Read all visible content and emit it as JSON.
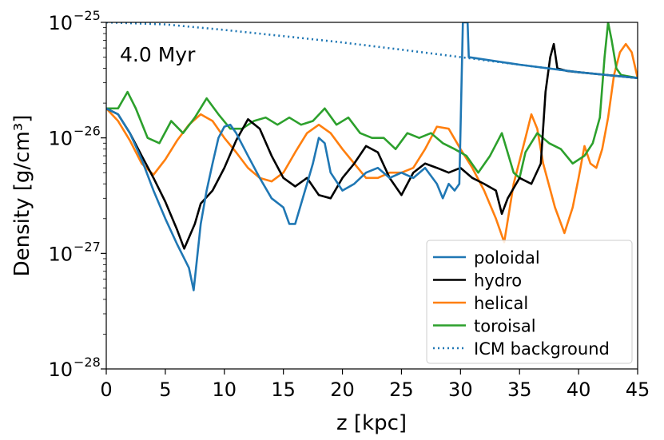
{
  "chart_data": {
    "type": "line",
    "annotation": "4.0 Myr",
    "xlabel": "z [kpc]",
    "ylabel": "Density [g/cm³]",
    "xlim": [
      0,
      45
    ],
    "ylim": [
      1e-28,
      1e-25
    ],
    "yscale": "log",
    "grid": false,
    "legend_position": "lower-right",
    "x_ticks": [
      0,
      5,
      10,
      15,
      20,
      25,
      30,
      35,
      40,
      45
    ],
    "x_tick_labels": [
      "0",
      "5",
      "10",
      "15",
      "20",
      "25",
      "30",
      "35",
      "40",
      "45"
    ],
    "y_ticks": [
      {
        "value": 1e-28,
        "base": "10",
        "exp": "−28"
      },
      {
        "value": 1e-27,
        "base": "10",
        "exp": "−27"
      },
      {
        "value": 1e-26,
        "base": "10",
        "exp": "−26"
      },
      {
        "value": 1e-25,
        "base": "10",
        "exp": "−25"
      }
    ],
    "series": [
      {
        "name": "ICM background",
        "color": "#1f77b4",
        "dash": "dotted",
        "points": [
          [
            0,
            1e-25
          ],
          [
            5,
            9.6e-26
          ],
          [
            10,
            8.6e-26
          ],
          [
            15,
            7.6e-26
          ],
          [
            20,
            6.7e-26
          ],
          [
            25,
            5.8e-26
          ],
          [
            30,
            5e-26
          ],
          [
            35,
            4.3e-26
          ],
          [
            40,
            3.7e-26
          ],
          [
            45,
            3.3e-26
          ]
        ]
      },
      {
        "name": "poloidal",
        "color": "#1f77b4",
        "dash": "solid",
        "points": [
          [
            0,
            1.8e-26
          ],
          [
            1,
            1.6e-26
          ],
          [
            2,
            1.1e-26
          ],
          [
            3,
            6.5e-27
          ],
          [
            4,
            3.5e-27
          ],
          [
            5,
            2e-27
          ],
          [
            6,
            1.2e-27
          ],
          [
            7,
            7.5e-28
          ],
          [
            7.4,
            4.8e-28
          ],
          [
            8,
            1.8e-27
          ],
          [
            8.5,
            3.5e-27
          ],
          [
            9,
            6e-27
          ],
          [
            9.5,
            1e-26
          ],
          [
            10,
            1.25e-26
          ],
          [
            10.5,
            1.3e-26
          ],
          [
            11,
            1.1e-26
          ],
          [
            12,
            7e-27
          ],
          [
            13,
            4.5e-27
          ],
          [
            14,
            3e-27
          ],
          [
            15,
            2.5e-27
          ],
          [
            15.5,
            1.8e-27
          ],
          [
            16,
            1.8e-27
          ],
          [
            17,
            4e-27
          ],
          [
            17.5,
            6e-27
          ],
          [
            18,
            1e-26
          ],
          [
            18.5,
            9e-27
          ],
          [
            19,
            5e-27
          ],
          [
            20,
            3.5e-27
          ],
          [
            21,
            4e-27
          ],
          [
            22,
            5e-27
          ],
          [
            23,
            5.5e-27
          ],
          [
            24,
            4.5e-27
          ],
          [
            25,
            5e-27
          ],
          [
            26,
            4.5e-27
          ],
          [
            27,
            5.5e-27
          ],
          [
            28,
            4e-27
          ],
          [
            28.5,
            3e-27
          ],
          [
            29,
            4e-27
          ],
          [
            29.5,
            3.5e-27
          ],
          [
            29.9,
            4e-27
          ],
          [
            30.2,
            1e-25
          ],
          [
            30.6,
            1e-25
          ],
          [
            30.7,
            5e-26
          ],
          [
            35,
            4.3e-26
          ],
          [
            40,
            3.7e-26
          ],
          [
            45,
            3.3e-26
          ]
        ]
      },
      {
        "name": "hydro",
        "color": "#000000",
        "dash": "solid",
        "points": [
          [
            0,
            1.8e-26
          ],
          [
            1,
            1.6e-26
          ],
          [
            2,
            1.1e-26
          ],
          [
            3,
            7e-27
          ],
          [
            4,
            4.5e-27
          ],
          [
            5,
            2.8e-27
          ],
          [
            6,
            1.6e-27
          ],
          [
            6.6,
            1.1e-27
          ],
          [
            7.5,
            1.8e-27
          ],
          [
            8,
            2.7e-27
          ],
          [
            9,
            3.5e-27
          ],
          [
            10,
            5.5e-27
          ],
          [
            11,
            9.5e-27
          ],
          [
            12,
            1.45e-26
          ],
          [
            13,
            1.2e-26
          ],
          [
            14,
            7e-27
          ],
          [
            15,
            4.5e-27
          ],
          [
            16,
            3.8e-27
          ],
          [
            17,
            4.5e-27
          ],
          [
            18,
            3.2e-27
          ],
          [
            19,
            3e-27
          ],
          [
            20,
            4.5e-27
          ],
          [
            21,
            6e-27
          ],
          [
            22,
            8.5e-27
          ],
          [
            23,
            7.5e-27
          ],
          [
            24,
            4.5e-27
          ],
          [
            25,
            3.2e-27
          ],
          [
            26,
            5e-27
          ],
          [
            27,
            6e-27
          ],
          [
            28,
            5.5e-27
          ],
          [
            29,
            5e-27
          ],
          [
            30,
            5.5e-27
          ],
          [
            31,
            4.5e-27
          ],
          [
            32,
            4e-27
          ],
          [
            33,
            3.5e-27
          ],
          [
            33.5,
            2.2e-27
          ],
          [
            34,
            3e-27
          ],
          [
            35,
            4.5e-27
          ],
          [
            36,
            4e-27
          ],
          [
            36.8,
            6e-27
          ],
          [
            37.2,
            2.5e-26
          ],
          [
            37.6,
            5e-26
          ],
          [
            37.9,
            6.5e-26
          ],
          [
            38.2,
            4e-26
          ],
          [
            39,
            3.8e-26
          ],
          [
            40,
            3.7e-26
          ],
          [
            45,
            3.3e-26
          ]
        ]
      },
      {
        "name": "helical",
        "color": "#ff7f0e",
        "dash": "solid",
        "points": [
          [
            0,
            1.8e-26
          ],
          [
            1,
            1.4e-26
          ],
          [
            2,
            9.5e-27
          ],
          [
            3,
            6e-27
          ],
          [
            4,
            4.8e-27
          ],
          [
            5,
            6.5e-27
          ],
          [
            6,
            9.5e-27
          ],
          [
            7,
            1.3e-26
          ],
          [
            8,
            1.6e-26
          ],
          [
            9,
            1.4e-26
          ],
          [
            10,
            1e-26
          ],
          [
            11,
            7.5e-27
          ],
          [
            12,
            5.5e-27
          ],
          [
            13,
            4.5e-27
          ],
          [
            14,
            4.2e-27
          ],
          [
            15,
            5e-27
          ],
          [
            16,
            7.5e-27
          ],
          [
            17,
            1.1e-26
          ],
          [
            18,
            1.3e-26
          ],
          [
            19,
            1.1e-26
          ],
          [
            20,
            8e-27
          ],
          [
            21,
            6e-27
          ],
          [
            22,
            4.5e-27
          ],
          [
            23,
            4.5e-27
          ],
          [
            24,
            5e-27
          ],
          [
            25,
            5e-27
          ],
          [
            26,
            5.5e-27
          ],
          [
            27,
            8e-27
          ],
          [
            28,
            1.25e-26
          ],
          [
            29,
            1.2e-26
          ],
          [
            30,
            8e-27
          ],
          [
            31,
            5.5e-27
          ],
          [
            32,
            3.5e-27
          ],
          [
            33,
            2e-27
          ],
          [
            33.7,
            1.25e-27
          ],
          [
            34.5,
            4e-27
          ],
          [
            35.5,
            1e-26
          ],
          [
            36,
            1.6e-26
          ],
          [
            36.5,
            1.2e-26
          ],
          [
            37,
            6e-27
          ],
          [
            38,
            2.5e-27
          ],
          [
            38.8,
            1.5e-27
          ],
          [
            39.5,
            2.5e-27
          ],
          [
            40,
            4.5e-27
          ],
          [
            40.5,
            8.5e-27
          ],
          [
            41,
            6e-27
          ],
          [
            41.5,
            5.5e-27
          ],
          [
            42,
            8e-27
          ],
          [
            42.5,
            1.5e-26
          ],
          [
            43,
            3.5e-26
          ],
          [
            43.5,
            5.5e-26
          ],
          [
            44,
            6.5e-26
          ],
          [
            44.5,
            5.5e-26
          ],
          [
            45,
            3.3e-26
          ]
        ]
      },
      {
        "name": "toroisal",
        "color": "#2ca02c",
        "dash": "solid",
        "points": [
          [
            0,
            1.8e-26
          ],
          [
            1,
            1.8e-26
          ],
          [
            1.8,
            2.5e-26
          ],
          [
            2.5,
            1.8e-26
          ],
          [
            3.5,
            1e-26
          ],
          [
            4.5,
            9e-27
          ],
          [
            5.5,
            1.4e-26
          ],
          [
            6.5,
            1.1e-26
          ],
          [
            7.5,
            1.5e-26
          ],
          [
            8.5,
            2.2e-26
          ],
          [
            9.5,
            1.6e-26
          ],
          [
            10.5,
            1.2e-26
          ],
          [
            11.5,
            1.2e-26
          ],
          [
            12.5,
            1.4e-26
          ],
          [
            13.5,
            1.5e-26
          ],
          [
            14.5,
            1.3e-26
          ],
          [
            15.5,
            1.5e-26
          ],
          [
            16.5,
            1.3e-26
          ],
          [
            17.5,
            1.4e-26
          ],
          [
            18.5,
            1.8e-26
          ],
          [
            19.5,
            1.3e-26
          ],
          [
            20.5,
            1.5e-26
          ],
          [
            21.5,
            1.1e-26
          ],
          [
            22.5,
            1e-26
          ],
          [
            23.5,
            1e-26
          ],
          [
            24.5,
            8e-27
          ],
          [
            25.5,
            1.1e-26
          ],
          [
            26.5,
            1e-26
          ],
          [
            27.5,
            1.1e-26
          ],
          [
            28.5,
            9e-27
          ],
          [
            29.5,
            8e-27
          ],
          [
            30.5,
            7e-27
          ],
          [
            31.5,
            5e-27
          ],
          [
            32.5,
            7e-27
          ],
          [
            33.5,
            1.1e-26
          ],
          [
            34.5,
            5e-27
          ],
          [
            35,
            4.5e-27
          ],
          [
            35.5,
            7.5e-27
          ],
          [
            36.5,
            1.1e-26
          ],
          [
            37.5,
            9e-27
          ],
          [
            38.5,
            8e-27
          ],
          [
            39.5,
            6e-27
          ],
          [
            40.5,
            7e-27
          ],
          [
            41.2,
            9e-27
          ],
          [
            41.8,
            1.5e-26
          ],
          [
            42.2,
            5e-26
          ],
          [
            42.5,
            1e-25
          ],
          [
            42.8,
            7e-26
          ],
          [
            43.2,
            4e-26
          ],
          [
            43.6,
            3.5e-26
          ],
          [
            45,
            3.3e-26
          ]
        ]
      }
    ],
    "legend_entries": [
      {
        "label": "poloidal",
        "color": "#1f77b4",
        "dash": "solid"
      },
      {
        "label": "hydro",
        "color": "#000000",
        "dash": "solid"
      },
      {
        "label": "helical",
        "color": "#ff7f0e",
        "dash": "solid"
      },
      {
        "label": "toroisal",
        "color": "#2ca02c",
        "dash": "solid"
      },
      {
        "label": "ICM background",
        "color": "#1f77b4",
        "dash": "dotted"
      }
    ]
  }
}
